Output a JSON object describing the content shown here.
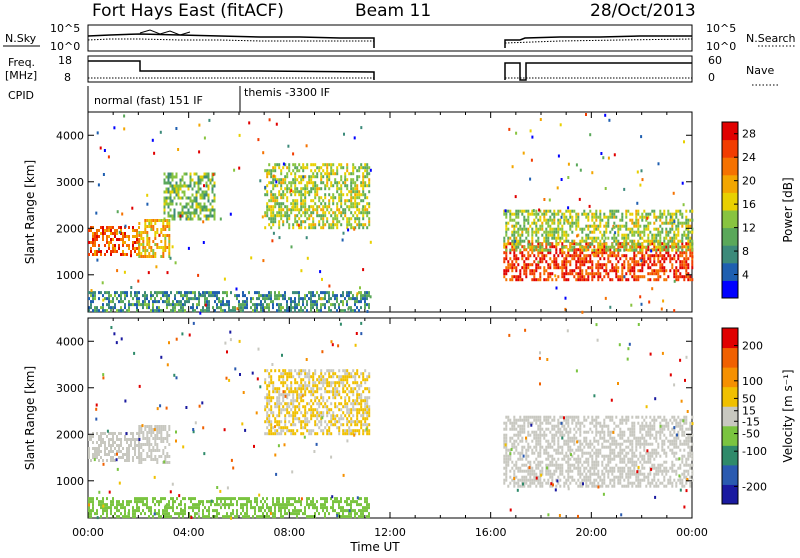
{
  "header": {
    "station": "Fort Hays East (fitACF)",
    "beam": "Beam 11",
    "date": "28/Oct/2013"
  },
  "panels": {
    "nsky_label": "N.Sky",
    "nsearch_label": "N.Search",
    "nsky_ticks": [
      "10^5",
      "10^0"
    ],
    "nsky_right_ticks": [
      "10^5",
      "10^0"
    ],
    "freq_label": "Freq.",
    "freq_unit": "[MHz]",
    "freq_ticks": [
      "18",
      "8"
    ],
    "nave_label": "Nave",
    "nave_ticks": [
      "60",
      "0"
    ],
    "cpid_label": "CPID",
    "cpid_modes": [
      "normal (fast) 151 IF",
      "themis -3300 IF"
    ]
  },
  "colors": {
    "power_scale": [
      "#0000ff",
      "#1f5fb0",
      "#3c8a7a",
      "#5aa85a",
      "#88c440",
      "#e8d000",
      "#f3a600",
      "#f57200",
      "#f23c00",
      "#e00000"
    ],
    "velocity_scale": [
      "#1a1aa0",
      "#2a5ab0",
      "#2f8a6a",
      "#7ac440",
      "#c8c8c0",
      "#f0c000",
      "#f59000",
      "#f06000",
      "#e00000"
    ],
    "ground_scatter": "#c8c8c0"
  },
  "chart_data": [
    {
      "type": "heatmap",
      "name": "power",
      "ylabel": "Slant Range [km]",
      "yticks": [
        "1000",
        "2000",
        "3000",
        "4000"
      ],
      "ylim": [
        200,
        4500
      ],
      "xlim_hours": [
        0,
        24
      ],
      "colorbar_label": "Power [dB]",
      "colorbar_ticks": [
        "4",
        "8",
        "12",
        "16",
        "20",
        "24",
        "28"
      ],
      "colorbar_range": [
        0,
        30
      ],
      "bands": [
        {
          "t0": 0.0,
          "t1": 2.0,
          "r0": 1450,
          "r1": 2050,
          "level": 24
        },
        {
          "t0": 2.0,
          "t1": 3.2,
          "r0": 1400,
          "r1": 2200,
          "level": 18
        },
        {
          "t0": 3.0,
          "t1": 5.0,
          "r0": 2200,
          "r1": 3200,
          "level": 12
        },
        {
          "t0": 7.0,
          "t1": 11.2,
          "r0": 2000,
          "r1": 3400,
          "level": 14
        },
        {
          "t0": 0.0,
          "t1": 11.2,
          "r0": 250,
          "r1": 650,
          "level": 8
        },
        {
          "t0": 16.5,
          "t1": 24.0,
          "r0": 900,
          "r1": 1700,
          "level": 26
        },
        {
          "t0": 16.5,
          "t1": 24.0,
          "r0": 1500,
          "r1": 2400,
          "level": 14
        }
      ]
    },
    {
      "type": "heatmap",
      "name": "velocity",
      "ylabel": "Slant Range [km]",
      "yticks": [
        "1000",
        "2000",
        "3000",
        "4000"
      ],
      "ylim": [
        200,
        4500
      ],
      "xlim_hours": [
        0,
        24
      ],
      "xticks": [
        "00:00",
        "04:00",
        "08:00",
        "12:00",
        "16:00",
        "20:00",
        "00:00"
      ],
      "xlabel": "Time UT",
      "colorbar_label": "Velocity [m s⁻¹]",
      "colorbar_ticks": [
        "200",
        "100",
        "50",
        "15",
        "-15",
        "-50",
        "-100",
        "-200"
      ],
      "colorbar_range": [
        -250,
        250
      ],
      "bands": [
        {
          "t0": 0.0,
          "t1": 2.0,
          "r0": 1450,
          "r1": 2050,
          "level": 0
        },
        {
          "t0": 2.0,
          "t1": 3.2,
          "r0": 1400,
          "r1": 2200,
          "level": 0
        },
        {
          "t0": 7.0,
          "t1": 11.2,
          "r0": 2000,
          "r1": 3400,
          "level": 30
        },
        {
          "t0": 0.0,
          "t1": 11.2,
          "r0": 250,
          "r1": 650,
          "level": -60
        },
        {
          "t0": 16.5,
          "t1": 24.0,
          "r0": 900,
          "r1": 2400,
          "level": 0
        }
      ]
    }
  ]
}
